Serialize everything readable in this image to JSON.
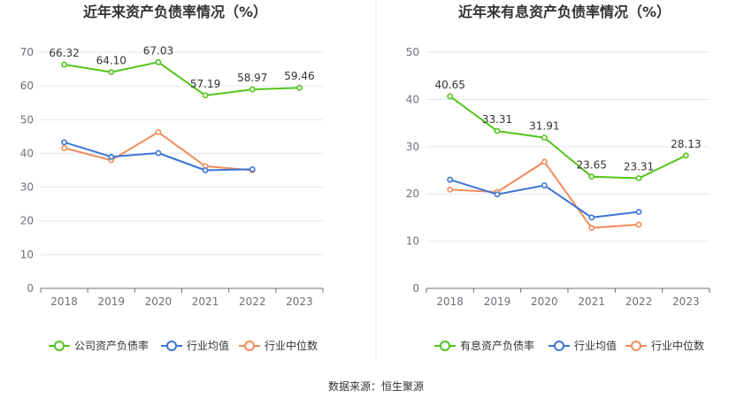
{
  "source_text": "数据来源：恒生聚源",
  "chart_data": [
    {
      "type": "line",
      "title": "近年来资产负债率情况（%）",
      "categories": [
        "2018",
        "2019",
        "2020",
        "2021",
        "2022",
        "2023"
      ],
      "ylim": [
        0,
        70
      ],
      "yticks": [
        0,
        10,
        20,
        30,
        40,
        50,
        60,
        70
      ],
      "grid": true,
      "legend_position": "bottom",
      "series": [
        {
          "name": "公司资产负债率",
          "color": "#52c41a",
          "values": [
            66.32,
            64.1,
            67.03,
            57.19,
            58.97,
            59.46
          ],
          "labels": [
            "66.32",
            "64.10",
            "67.03",
            "57.19",
            "58.97",
            "59.46"
          ],
          "show_labels": true
        },
        {
          "name": "行业均值",
          "color": "#3a75d6",
          "values": [
            43.3,
            39.0,
            40.1,
            35.0,
            35.3,
            null
          ],
          "show_labels": false
        },
        {
          "name": "行业中位数",
          "color": "#f08c5a",
          "values": [
            41.6,
            38.0,
            46.3,
            36.2,
            35.0,
            null
          ],
          "show_labels": false
        }
      ]
    },
    {
      "type": "line",
      "title": "近年来有息资产负债率情况（%）",
      "categories": [
        "2018",
        "2019",
        "2020",
        "2021",
        "2022",
        "2023"
      ],
      "ylim": [
        0,
        50
      ],
      "yticks": [
        0,
        10,
        20,
        30,
        40,
        50
      ],
      "grid": true,
      "legend_position": "bottom",
      "series": [
        {
          "name": "有息资产负债率",
          "color": "#52c41a",
          "values": [
            40.65,
            33.31,
            31.91,
            23.65,
            23.31,
            28.13
          ],
          "labels": [
            "40.65",
            "33.31",
            "31.91",
            "23.65",
            "23.31",
            "28.13"
          ],
          "show_labels": true
        },
        {
          "name": "行业均值",
          "color": "#3a75d6",
          "values": [
            23.0,
            19.9,
            21.8,
            15.0,
            16.2,
            null
          ],
          "show_labels": false
        },
        {
          "name": "行业中位数",
          "color": "#f08c5a",
          "values": [
            20.9,
            20.4,
            26.8,
            12.8,
            13.5,
            null
          ],
          "show_labels": false
        }
      ]
    }
  ]
}
